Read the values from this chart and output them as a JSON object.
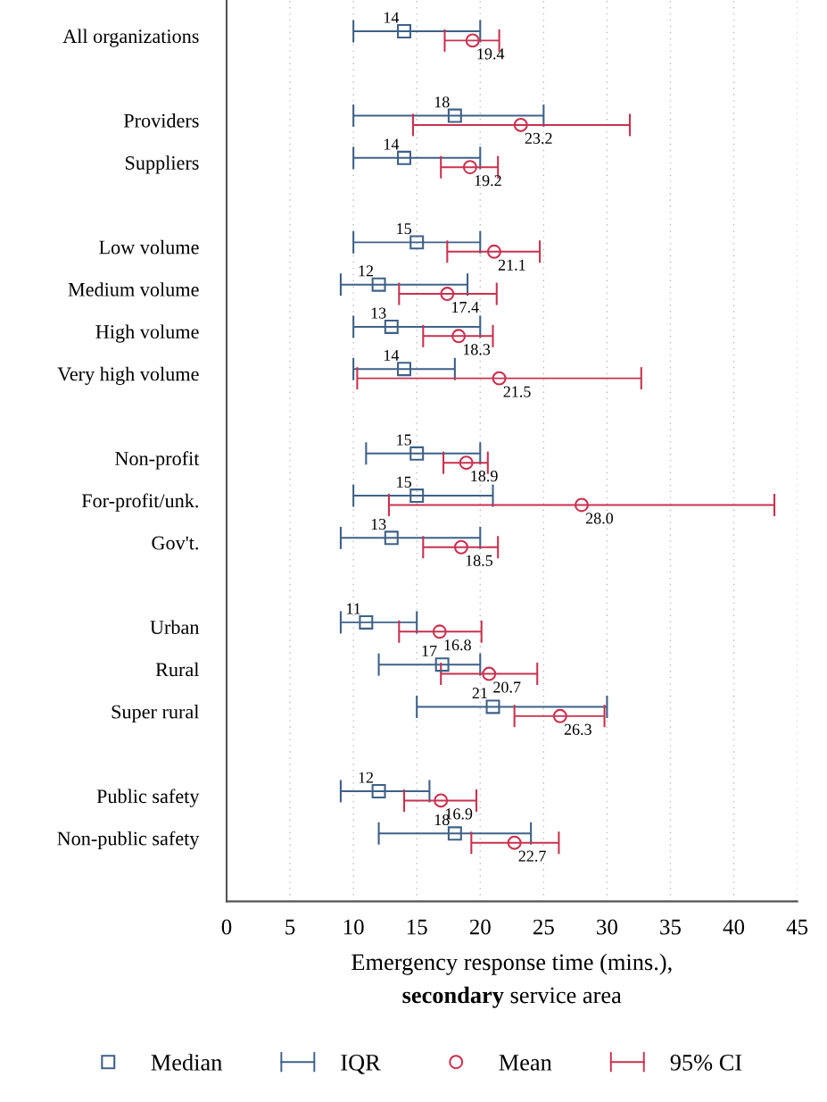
{
  "chart_data": {
    "type": "scatter",
    "orientation": "horizontal",
    "categories": [
      "All organizations",
      null,
      "Providers",
      "Suppliers",
      null,
      "Low volume",
      "Medium volume",
      "High volume",
      "Very high volume",
      null,
      "Non-profit",
      "For-profit/unk.",
      "Gov't.",
      null,
      "Urban",
      "Rural",
      "Super rural",
      null,
      "Public safety",
      "Non-public safety"
    ],
    "xlabel": "Emergency response time (mins.),\nsecondary service area",
    "xlim": [
      0,
      45
    ],
    "xticks": [
      0,
      5,
      10,
      15,
      20,
      25,
      30,
      35,
      40,
      45
    ],
    "grid": "x",
    "legend": "bottom",
    "annotations": [
      "IQR",
      "95% CI"
    ],
    "series": [
      {
        "name": "Median",
        "color": "#3e6187",
        "marker": "square",
        "values": [
          14,
          null,
          18,
          14,
          null,
          15,
          12,
          13,
          14,
          null,
          15,
          15,
          13,
          null,
          11,
          17,
          21,
          null,
          12,
          18
        ],
        "value_labels": [
          "14",
          null,
          "18",
          "14",
          null,
          "15",
          "12",
          "13",
          "14",
          null,
          "15",
          "15",
          "13",
          null,
          "11",
          "17",
          "21",
          null,
          "12",
          "18"
        ],
        "errors": [
          [
            10,
            20
          ],
          null,
          [
            10,
            25
          ],
          [
            10,
            20
          ],
          null,
          [
            10,
            20
          ],
          [
            9,
            19
          ],
          [
            10,
            20
          ],
          [
            10,
            18
          ],
          null,
          [
            11,
            20
          ],
          [
            10,
            21
          ],
          [
            9,
            20
          ],
          null,
          [
            9,
            15
          ],
          [
            12,
            20
          ],
          [
            15,
            30
          ],
          null,
          [
            9,
            16
          ],
          [
            12,
            24
          ]
        ]
      },
      {
        "name": "Mean",
        "color": "#c8324f",
        "marker": "circle",
        "values": [
          19.4,
          null,
          23.2,
          19.2,
          null,
          21.1,
          17.4,
          18.3,
          21.5,
          null,
          18.9,
          28.0,
          18.5,
          null,
          16.8,
          20.7,
          26.3,
          null,
          16.9,
          22.7
        ],
        "value_labels": [
          "19.4",
          null,
          "23.2",
          "19.2",
          null,
          "21.1",
          "17.4",
          "18.3",
          "21.5",
          null,
          "18.9",
          "28.0",
          "18.5",
          null,
          "16.8",
          "20.7",
          "26.3",
          null,
          "16.9",
          "22.7"
        ],
        "errors": [
          [
            17.2,
            21.5
          ],
          null,
          [
            14.7,
            31.8
          ],
          [
            16.9,
            21.4
          ],
          null,
          [
            17.4,
            24.7
          ],
          [
            13.6,
            21.3
          ],
          [
            15.5,
            21.0
          ],
          [
            10.3,
            32.7
          ],
          null,
          [
            17.1,
            20.6
          ],
          [
            12.8,
            43.2
          ],
          [
            15.5,
            21.4
          ],
          null,
          [
            13.6,
            20.1
          ],
          [
            16.9,
            24.5
          ],
          [
            22.7,
            29.8
          ],
          null,
          [
            14.0,
            19.7
          ],
          [
            19.3,
            26.2
          ]
        ]
      }
    ]
  }
}
